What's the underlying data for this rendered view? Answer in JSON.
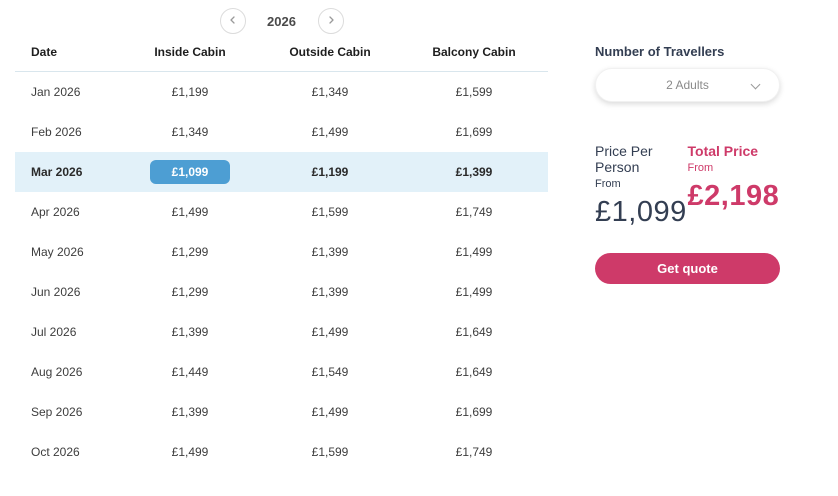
{
  "year_nav": {
    "year": "2026",
    "prev_icon": "chevron-left-icon",
    "next_icon": "chevron-right-icon"
  },
  "table": {
    "headers": [
      "Date",
      "Inside Cabin",
      "Outside Cabin",
      "Balcony Cabin"
    ],
    "rows": [
      {
        "date": "Jan 2026",
        "inside": "£1,199",
        "outside": "£1,349",
        "balcony": "£1,599",
        "selected": false
      },
      {
        "date": "Feb 2026",
        "inside": "£1,349",
        "outside": "£1,499",
        "balcony": "£1,699",
        "selected": false
      },
      {
        "date": "Mar 2026",
        "inside": "£1,099",
        "outside": "£1,199",
        "balcony": "£1,399",
        "selected": true
      },
      {
        "date": "Apr 2026",
        "inside": "£1,499",
        "outside": "£1,599",
        "balcony": "£1,749",
        "selected": false
      },
      {
        "date": "May 2026",
        "inside": "£1,299",
        "outside": "£1,399",
        "balcony": "£1,499",
        "selected": false
      },
      {
        "date": "Jun 2026",
        "inside": "£1,299",
        "outside": "£1,399",
        "balcony": "£1,499",
        "selected": false
      },
      {
        "date": "Jul 2026",
        "inside": "£1,399",
        "outside": "£1,499",
        "balcony": "£1,649",
        "selected": false
      },
      {
        "date": "Aug 2026",
        "inside": "£1,449",
        "outside": "£1,549",
        "balcony": "£1,649",
        "selected": false
      },
      {
        "date": "Sep 2026",
        "inside": "£1,399",
        "outside": "£1,499",
        "balcony": "£1,699",
        "selected": false
      },
      {
        "date": "Oct 2026",
        "inside": "£1,499",
        "outside": "£1,599",
        "balcony": "£1,749",
        "selected": false
      }
    ]
  },
  "travellers": {
    "label": "Number of Travellers",
    "selected_value": "2 Adults",
    "dropdown_icon": "chevron-down-icon"
  },
  "pricing": {
    "per_person": {
      "label": "Price Per Person",
      "from": "From",
      "value": "£1,099"
    },
    "total": {
      "label": "Total Price",
      "from": "From",
      "value": "£2,198"
    }
  },
  "cta": {
    "label": "Get quote"
  },
  "colors": {
    "accent_pink": "#ce3a69",
    "accent_blue": "#4d9ed3",
    "highlight_row_bg": "#e2f1f9",
    "navy_text": "#333e52"
  }
}
